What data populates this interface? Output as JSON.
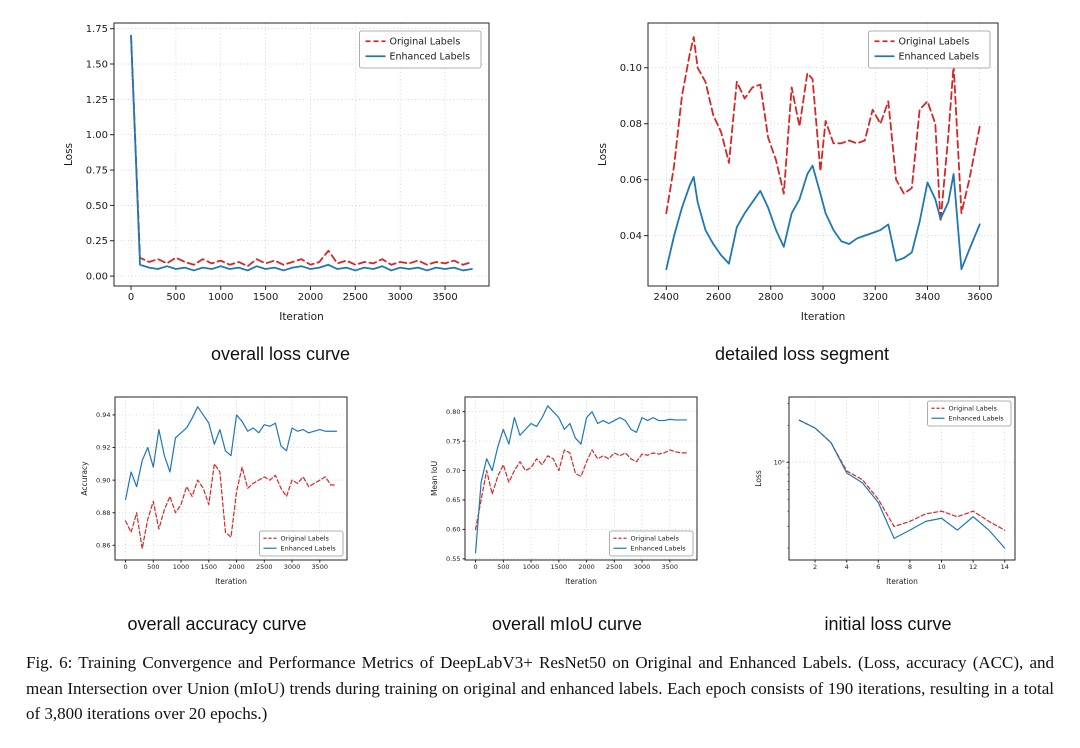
{
  "figure": {
    "caption": "Fig. 6: Training Convergence and Performance Metrics of DeepLabV3+ ResNet50 on Original and Enhanced Labels. (Loss, accuracy (ACC), and mean Intersection over Union (mIoU) trends during training on original and enhanced labels. Each epoch consists of 190 iterations, resulting in a total of 3,800 iterations over 20 epochs.)"
  },
  "colors": {
    "original": "#d62728",
    "enhanced": "#1f77b4"
  },
  "chart_data": [
    {
      "id": "overall-loss",
      "type": "line",
      "subcaption": "overall loss curve",
      "xlabel": "Iteration",
      "ylabel": "Loss",
      "xlim": [
        -190,
        3990
      ],
      "ylim": [
        -0.07,
        1.79
      ],
      "xticks": [
        0,
        500,
        1000,
        1500,
        2000,
        2500,
        3000,
        3500
      ],
      "xtick_labels": [
        "0",
        "500",
        "1000",
        "1500",
        "2000",
        "2500",
        "3000",
        "3500"
      ],
      "yticks": [
        0,
        0.25,
        0.5,
        0.75,
        1.0,
        1.25,
        1.5,
        1.75
      ],
      "ytick_labels": [
        "0.00",
        "0.25",
        "0.50",
        "0.75",
        "1.00",
        "1.25",
        "1.50",
        "1.75"
      ],
      "grid": true,
      "ylog": false,
      "legend_pos": "top-right",
      "x": [
        0,
        100,
        200,
        300,
        400,
        500,
        600,
        700,
        800,
        900,
        1000,
        1100,
        1200,
        1300,
        1400,
        1500,
        1600,
        1700,
        1800,
        1900,
        2000,
        2100,
        2200,
        2300,
        2400,
        2500,
        2600,
        2700,
        2800,
        2900,
        3000,
        3100,
        3200,
        3300,
        3400,
        3500,
        3600,
        3700,
        3800
      ],
      "series": [
        {
          "name": "Original Labels",
          "color": "#d62728",
          "style": "dashed",
          "y": [
            1.7,
            0.13,
            0.1,
            0.12,
            0.09,
            0.13,
            0.1,
            0.08,
            0.12,
            0.09,
            0.11,
            0.08,
            0.1,
            0.07,
            0.12,
            0.09,
            0.11,
            0.08,
            0.1,
            0.12,
            0.08,
            0.1,
            0.18,
            0.09,
            0.11,
            0.08,
            0.1,
            0.09,
            0.12,
            0.08,
            0.1,
            0.09,
            0.11,
            0.08,
            0.1,
            0.09,
            0.11,
            0.08,
            0.1
          ]
        },
        {
          "name": "Enhanced Labels",
          "color": "#1f77b4",
          "style": "solid",
          "y": [
            1.7,
            0.08,
            0.06,
            0.05,
            0.07,
            0.05,
            0.06,
            0.04,
            0.06,
            0.05,
            0.07,
            0.05,
            0.06,
            0.04,
            0.07,
            0.05,
            0.06,
            0.04,
            0.06,
            0.07,
            0.05,
            0.06,
            0.08,
            0.05,
            0.06,
            0.04,
            0.06,
            0.05,
            0.07,
            0.04,
            0.06,
            0.05,
            0.06,
            0.04,
            0.06,
            0.05,
            0.06,
            0.04,
            0.05
          ]
        }
      ]
    },
    {
      "id": "detailed-loss",
      "type": "line",
      "subcaption": "detailed loss segment",
      "xlabel": "Iteration",
      "ylabel": "Loss",
      "xlim": [
        2330,
        3670
      ],
      "ylim": [
        0.022,
        0.116
      ],
      "xticks": [
        2400,
        2600,
        2800,
        3000,
        3200,
        3400,
        3600
      ],
      "xtick_labels": [
        "2400",
        "2600",
        "2800",
        "3000",
        "3200",
        "3400",
        "3600"
      ],
      "yticks": [
        0.04,
        0.06,
        0.08,
        0.1
      ],
      "ytick_labels": [
        "0.04",
        "0.06",
        "0.08",
        "0.10"
      ],
      "grid": true,
      "ylog": false,
      "legend_pos": "top-right",
      "x": [
        2400,
        2430,
        2460,
        2490,
        2505,
        2520,
        2550,
        2580,
        2610,
        2640,
        2670,
        2700,
        2730,
        2760,
        2790,
        2820,
        2850,
        2880,
        2910,
        2940,
        2960,
        2990,
        3010,
        3040,
        3070,
        3100,
        3130,
        3160,
        3190,
        3220,
        3250,
        3280,
        3310,
        3340,
        3370,
        3400,
        3430,
        3450,
        3480,
        3500,
        3530,
        3560,
        3600
      ],
      "series": [
        {
          "name": "Original Labels",
          "color": "#d62728",
          "style": "dashed",
          "y": [
            0.048,
            0.065,
            0.09,
            0.105,
            0.111,
            0.1,
            0.095,
            0.083,
            0.077,
            0.066,
            0.095,
            0.089,
            0.093,
            0.094,
            0.075,
            0.067,
            0.055,
            0.093,
            0.079,
            0.098,
            0.096,
            0.063,
            0.081,
            0.073,
            0.073,
            0.074,
            0.073,
            0.074,
            0.085,
            0.08,
            0.088,
            0.06,
            0.055,
            0.057,
            0.085,
            0.088,
            0.08,
            0.045,
            0.076,
            0.101,
            0.048,
            0.06,
            0.079
          ]
        },
        {
          "name": "Enhanced Labels",
          "color": "#1f77b4",
          "style": "solid",
          "y": [
            0.028,
            0.04,
            0.05,
            0.058,
            0.061,
            0.052,
            0.042,
            0.037,
            0.033,
            0.03,
            0.043,
            0.048,
            0.052,
            0.056,
            0.05,
            0.042,
            0.036,
            0.048,
            0.053,
            0.062,
            0.065,
            0.055,
            0.048,
            0.042,
            0.038,
            0.037,
            0.039,
            0.04,
            0.041,
            0.042,
            0.044,
            0.031,
            0.032,
            0.034,
            0.045,
            0.059,
            0.053,
            0.046,
            0.052,
            0.062,
            0.028,
            0.035,
            0.044
          ]
        }
      ]
    },
    {
      "id": "overall-accuracy",
      "type": "line",
      "subcaption": "overall accuracy curve",
      "xlabel": "Iteration",
      "ylabel": "Accuracy",
      "xlim": [
        -190,
        3990
      ],
      "ylim": [
        0.851,
        0.951
      ],
      "xticks": [
        0,
        500,
        1000,
        1500,
        2000,
        2500,
        3000,
        3500
      ],
      "xtick_labels": [
        "0",
        "500",
        "1000",
        "1500",
        "2000",
        "2500",
        "3000",
        "3500"
      ],
      "yticks": [
        0.86,
        0.88,
        0.9,
        0.92,
        0.94
      ],
      "ytick_labels": [
        "0.86",
        "0.88",
        "0.90",
        "0.92",
        "0.94"
      ],
      "grid": true,
      "ylog": false,
      "legend_pos": "bottom-right",
      "x": [
        0,
        100,
        200,
        300,
        400,
        500,
        600,
        700,
        800,
        900,
        1000,
        1100,
        1200,
        1300,
        1400,
        1500,
        1600,
        1700,
        1800,
        1900,
        2000,
        2100,
        2200,
        2300,
        2400,
        2500,
        2600,
        2700,
        2800,
        2900,
        3000,
        3100,
        3200,
        3300,
        3400,
        3500,
        3600,
        3700,
        3800
      ],
      "series": [
        {
          "name": "Original Labels",
          "color": "#d62728",
          "style": "dashed",
          "y": [
            0.875,
            0.868,
            0.88,
            0.858,
            0.876,
            0.887,
            0.87,
            0.882,
            0.89,
            0.88,
            0.885,
            0.896,
            0.89,
            0.9,
            0.895,
            0.885,
            0.91,
            0.905,
            0.868,
            0.865,
            0.893,
            0.908,
            0.895,
            0.898,
            0.9,
            0.902,
            0.9,
            0.903,
            0.895,
            0.89,
            0.9,
            0.898,
            0.902,
            0.896,
            0.898,
            0.9,
            0.902,
            0.897,
            0.897
          ]
        },
        {
          "name": "Enhanced Labels",
          "color": "#1f77b4",
          "style": "solid",
          "y": [
            0.888,
            0.905,
            0.896,
            0.912,
            0.92,
            0.908,
            0.931,
            0.915,
            0.905,
            0.926,
            0.929,
            0.932,
            0.938,
            0.945,
            0.94,
            0.935,
            0.922,
            0.931,
            0.918,
            0.915,
            0.94,
            0.936,
            0.93,
            0.932,
            0.929,
            0.934,
            0.933,
            0.935,
            0.921,
            0.918,
            0.932,
            0.93,
            0.931,
            0.929,
            0.93,
            0.931,
            0.93,
            0.93,
            0.93
          ]
        }
      ]
    },
    {
      "id": "overall-miou",
      "type": "line",
      "subcaption": "overall mIoU curve",
      "xlabel": "Iteration",
      "ylabel": "Mean IoU",
      "xlim": [
        -190,
        3990
      ],
      "ylim": [
        0.548,
        0.825
      ],
      "xticks": [
        0,
        500,
        1000,
        1500,
        2000,
        2500,
        3000,
        3500
      ],
      "xtick_labels": [
        "0",
        "500",
        "1000",
        "1500",
        "2000",
        "2500",
        "3000",
        "3500"
      ],
      "yticks": [
        0.55,
        0.6,
        0.65,
        0.7,
        0.75,
        0.8
      ],
      "ytick_labels": [
        "0.55",
        "0.60",
        "0.65",
        "0.70",
        "0.75",
        "0.80"
      ],
      "grid": true,
      "ylog": false,
      "legend_pos": "bottom-right",
      "x": [
        0,
        100,
        200,
        300,
        400,
        500,
        600,
        700,
        800,
        900,
        1000,
        1100,
        1200,
        1300,
        1400,
        1500,
        1600,
        1700,
        1800,
        1900,
        2000,
        2100,
        2200,
        2300,
        2400,
        2500,
        2600,
        2700,
        2800,
        2900,
        3000,
        3100,
        3200,
        3300,
        3400,
        3500,
        3600,
        3700,
        3800
      ],
      "series": [
        {
          "name": "Original Labels",
          "color": "#d62728",
          "style": "dashed",
          "y": [
            0.6,
            0.65,
            0.7,
            0.66,
            0.69,
            0.71,
            0.68,
            0.7,
            0.715,
            0.7,
            0.705,
            0.72,
            0.71,
            0.725,
            0.72,
            0.7,
            0.735,
            0.73,
            0.695,
            0.69,
            0.715,
            0.735,
            0.72,
            0.725,
            0.72,
            0.73,
            0.725,
            0.73,
            0.72,
            0.715,
            0.728,
            0.726,
            0.73,
            0.728,
            0.73,
            0.735,
            0.732,
            0.73,
            0.73
          ]
        },
        {
          "name": "Enhanced Labels",
          "color": "#1f77b4",
          "style": "solid",
          "y": [
            0.56,
            0.68,
            0.72,
            0.7,
            0.74,
            0.77,
            0.745,
            0.79,
            0.76,
            0.77,
            0.78,
            0.775,
            0.79,
            0.81,
            0.8,
            0.79,
            0.77,
            0.78,
            0.755,
            0.745,
            0.79,
            0.8,
            0.78,
            0.785,
            0.78,
            0.785,
            0.79,
            0.785,
            0.77,
            0.765,
            0.79,
            0.785,
            0.79,
            0.785,
            0.785,
            0.787,
            0.786,
            0.786,
            0.786
          ]
        }
      ]
    },
    {
      "id": "initial-loss",
      "type": "line",
      "subcaption": "initial loss curve",
      "xlabel": "Iteration",
      "ylabel": "Loss",
      "xlim": [
        0.35,
        14.65
      ],
      "ylim": [
        0.16,
        3.4
      ],
      "xticks": [
        2,
        4,
        6,
        8,
        10,
        12,
        14
      ],
      "xtick_labels": [
        "2",
        "4",
        "6",
        "8",
        "10",
        "12",
        "14"
      ],
      "yticks": [
        1
      ],
      "ytick_labels": [
        "10⁰"
      ],
      "grid": true,
      "ylog": true,
      "legend_pos": "top-right",
      "x": [
        1,
        2,
        3,
        4,
        5,
        6,
        7,
        8,
        9,
        10,
        11,
        12,
        13,
        14
      ],
      "series": [
        {
          "name": "Original Labels",
          "color": "#d62728",
          "style": "dashed",
          "y": [
            2.2,
            1.9,
            1.45,
            0.85,
            0.72,
            0.5,
            0.3,
            0.33,
            0.38,
            0.4,
            0.36,
            0.4,
            0.33,
            0.28
          ]
        },
        {
          "name": "Enhanced Labels",
          "color": "#1f77b4",
          "style": "solid",
          "y": [
            2.2,
            1.9,
            1.45,
            0.82,
            0.68,
            0.47,
            0.24,
            0.28,
            0.33,
            0.35,
            0.28,
            0.36,
            0.28,
            0.2
          ]
        }
      ]
    }
  ]
}
